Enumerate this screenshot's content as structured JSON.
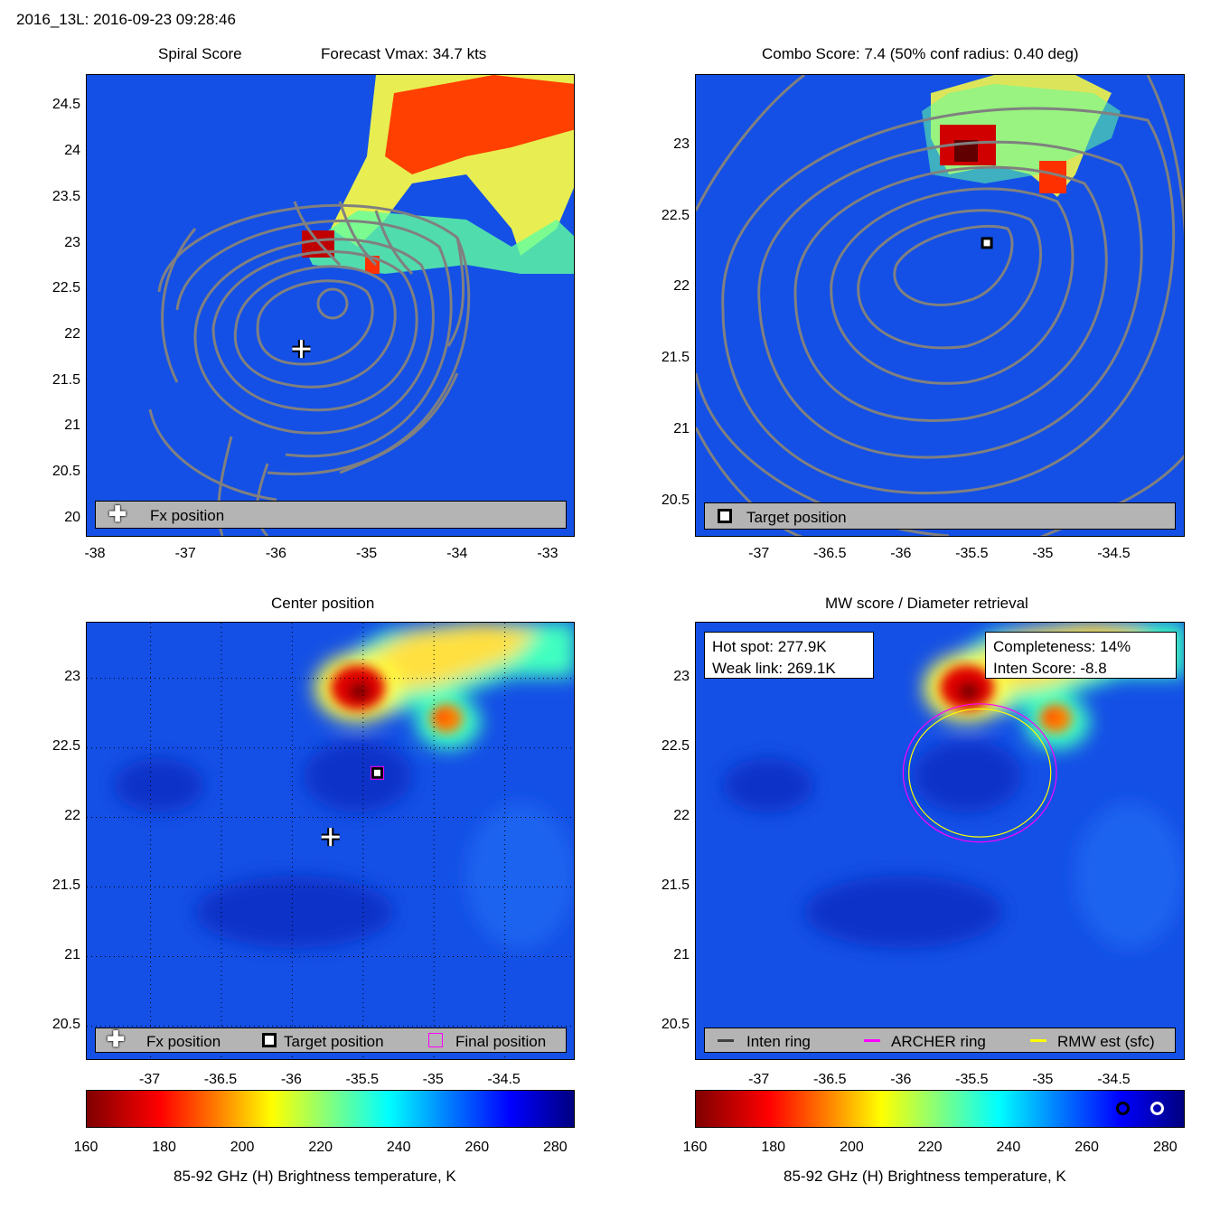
{
  "header": {
    "title": "2016_13L: 2016-09-23 09:28:46"
  },
  "colors": {
    "field_blue": "#1450e6",
    "contour_gray": "#808080",
    "legend_gray": "#b4b4b4",
    "archer_ring": "#ff00ff",
    "rmw_ring": "#ffff00",
    "inten_ring": "#404040"
  },
  "chart_data": [
    {
      "type": "heatmap",
      "title": "Spiral Score",
      "subtitle": "Forecast Vmax: 34.7 kts",
      "xlim": [
        -38.1,
        -32.7
      ],
      "ylim": [
        19.8,
        24.85
      ],
      "xticks": [
        "-38",
        "-37",
        "-36",
        "-35",
        "-34",
        "-33"
      ],
      "yticks": [
        "20",
        "20.5",
        "21",
        "21.5",
        "22",
        "22.5",
        "23",
        "23.5",
        "24",
        "24.5"
      ],
      "xtick_values": [
        -38,
        -37,
        -36,
        -35,
        -34,
        -33
      ],
      "ytick_values": [
        20,
        20.5,
        21,
        21.5,
        22,
        22.5,
        23,
        23.5,
        24,
        24.5
      ],
      "markers": [
        {
          "name": "Fx position",
          "lon": -35.73,
          "lat": 21.86
        }
      ],
      "legend": [
        {
          "label": "Fx position",
          "symbol": "plus-icon"
        }
      ]
    },
    {
      "type": "heatmap",
      "title": "Combo Score: 7.4  (50% conf radius: 0.40 deg)",
      "xlim": [
        -37.45,
        -34.0
      ],
      "ylim": [
        20.25,
        23.5
      ],
      "xticks": [
        "-37",
        "-36.5",
        "-36",
        "-35.5",
        "-35",
        "-34.5"
      ],
      "yticks": [
        "20.5",
        "21",
        "21.5",
        "22",
        "22.5",
        "23"
      ],
      "xtick_values": [
        -37,
        -36.5,
        -36,
        -35.5,
        -35,
        -34.5
      ],
      "ytick_values": [
        20.5,
        21,
        21.5,
        22,
        22.5,
        23
      ],
      "markers": [
        {
          "name": "Target position",
          "lon": -35.4,
          "lat": 22.32
        }
      ],
      "legend": [
        {
          "label": "Target position",
          "symbol": "square-icon"
        }
      ]
    },
    {
      "type": "heatmap",
      "title": "Center position",
      "xlim": [
        -37.45,
        -34.0
      ],
      "ylim": [
        20.25,
        23.4
      ],
      "xticks": [
        "-37",
        "-36.5",
        "-36",
        "-35.5",
        "-35",
        "-34.5"
      ],
      "yticks": [
        "20.5",
        "21",
        "21.5",
        "22",
        "22.5",
        "23"
      ],
      "xtick_values": [
        -37,
        -36.5,
        -36,
        -35.5,
        -35,
        -34.5
      ],
      "ytick_values": [
        20.5,
        21,
        21.5,
        22,
        22.5,
        23
      ],
      "markers": [
        {
          "name": "Fx position",
          "lon": -35.73,
          "lat": 21.86
        },
        {
          "name": "Target position",
          "lon": -35.4,
          "lat": 22.32
        },
        {
          "name": "Final position",
          "lon": -35.4,
          "lat": 22.32
        }
      ],
      "legend": [
        {
          "label": "Fx position",
          "symbol": "plus-icon"
        },
        {
          "label": "Target position",
          "symbol": "square-icon"
        },
        {
          "label": "Final position",
          "symbol": "magenta-square-icon"
        }
      ]
    },
    {
      "type": "heatmap",
      "title": "MW score / Diameter retrieval",
      "xlim": [
        -37.45,
        -34.0
      ],
      "ylim": [
        20.25,
        23.4
      ],
      "xticks": [
        "-37",
        "-36.5",
        "-36",
        "-35.5",
        "-35",
        "-34.5"
      ],
      "yticks": [
        "20.5",
        "21",
        "21.5",
        "22",
        "22.5",
        "23"
      ],
      "xtick_values": [
        -37,
        -36.5,
        -36,
        -35.5,
        -35,
        -34.5
      ],
      "ytick_values": [
        20.5,
        21,
        21.5,
        22,
        22.5,
        23
      ],
      "annotations": {
        "hot_spot": "Hot spot: 277.9K",
        "weak_link": "Weak link: 269.1K",
        "completeness": "Completeness: 14%",
        "inten_score": "Inten Score: -8.8"
      },
      "rings": [
        {
          "name": "ARCHER ring",
          "lon": -35.45,
          "lat": 22.32,
          "radius_deg": 0.54
        },
        {
          "name": "RMW est (sfc)",
          "lon": -35.45,
          "lat": 22.32,
          "radius_deg": 0.5
        }
      ],
      "legend": [
        {
          "label": "Inten ring",
          "color": "#404040"
        },
        {
          "label": "ARCHER ring",
          "color": "#ff00ff"
        },
        {
          "label": "RMW est (sfc)",
          "color": "#ffff00"
        }
      ]
    }
  ],
  "colorbar": {
    "label": "85-92 GHz (H) Brightness temperature, K",
    "range": [
      160,
      285
    ],
    "ticks": [
      "160",
      "180",
      "200",
      "220",
      "240",
      "260",
      "280"
    ],
    "tick_values": [
      160,
      180,
      200,
      220,
      240,
      260,
      280
    ],
    "markers": [
      {
        "name": "Hot spot",
        "value": 277.9
      },
      {
        "name": "Weak link",
        "value": 269.1
      }
    ]
  }
}
